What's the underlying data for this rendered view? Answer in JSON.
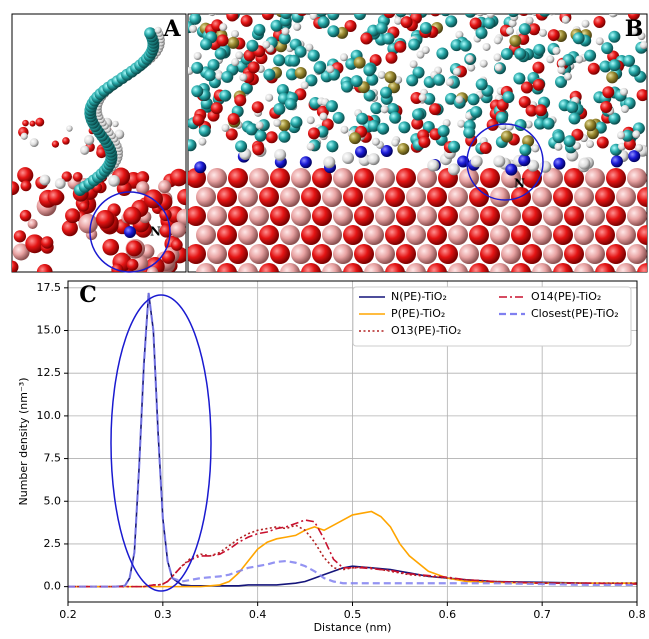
{
  "panels": {
    "a_label": "A",
    "b_label": "B",
    "n_label_a": "N",
    "n_label_b": "N"
  },
  "chart_data": {
    "type": "line",
    "panel_label": "C",
    "xlabel": "Distance (nm)",
    "ylabel": "Number density (nm⁻³)",
    "x": [
      0.2,
      0.22,
      0.24,
      0.25,
      0.26,
      0.265,
      0.27,
      0.275,
      0.28,
      0.285,
      0.29,
      0.295,
      0.3,
      0.305,
      0.31,
      0.32,
      0.33,
      0.34,
      0.35,
      0.36,
      0.37,
      0.38,
      0.39,
      0.4,
      0.41,
      0.42,
      0.43,
      0.44,
      0.45,
      0.46,
      0.47,
      0.48,
      0.49,
      0.5,
      0.51,
      0.52,
      0.53,
      0.54,
      0.55,
      0.56,
      0.58,
      0.6,
      0.62,
      0.65,
      0.7,
      0.75,
      0.8
    ],
    "series": [
      {
        "name": "N(PE)-TiO₂",
        "color": "#14147a",
        "linestyle": "solid",
        "values": [
          0,
          0,
          0,
          0,
          0.05,
          0.5,
          2,
          7,
          13,
          17.2,
          15,
          9,
          4,
          1.5,
          0.5,
          0.1,
          0.05,
          0.05,
          0.05,
          0.05,
          0.05,
          0.05,
          0.1,
          0.1,
          0.1,
          0.1,
          0.15,
          0.2,
          0.3,
          0.5,
          0.7,
          0.9,
          1.1,
          1.2,
          1.15,
          1.1,
          1.05,
          1.0,
          0.9,
          0.8,
          0.6,
          0.5,
          0.4,
          0.3,
          0.25,
          0.2,
          0.2
        ]
      },
      {
        "name": "P(PE)-TiO₂",
        "color": "#ffa500",
        "linestyle": "solid",
        "values": [
          0,
          0,
          0,
          0,
          0,
          0,
          0,
          0,
          0,
          0,
          0,
          0,
          0,
          0,
          0,
          0,
          0,
          0,
          0.05,
          0.1,
          0.3,
          0.8,
          1.5,
          2.2,
          2.6,
          2.8,
          2.9,
          3.0,
          3.3,
          3.5,
          3.3,
          3.6,
          3.9,
          4.2,
          4.3,
          4.4,
          4.1,
          3.5,
          2.5,
          1.8,
          0.9,
          0.5,
          0.3,
          0.25,
          0.2,
          0.2,
          0.2
        ]
      },
      {
        "name": "O13(PE)-TiO₂",
        "color": "#b22222",
        "linestyle": "dotted",
        "values": [
          0,
          0,
          0,
          0,
          0,
          0,
          0,
          0,
          0,
          0.05,
          0.1,
          0.1,
          0.15,
          0.3,
          0.6,
          1.2,
          1.7,
          1.9,
          1.8,
          2.0,
          2.4,
          2.8,
          3.1,
          3.3,
          3.4,
          3.5,
          3.4,
          3.6,
          3.3,
          2.6,
          1.7,
          1.1,
          1.0,
          1.1,
          1.15,
          1.1,
          1.0,
          0.9,
          0.8,
          0.7,
          0.6,
          0.5,
          0.4,
          0.3,
          0.2,
          0.2,
          0.2
        ]
      },
      {
        "name": "O14(PE)-TiO₂",
        "color": "#c8102e",
        "linestyle": "dashdot",
        "values": [
          0,
          0,
          0,
          0,
          0,
          0,
          0,
          0,
          0,
          0.05,
          0.1,
          0.1,
          0.15,
          0.3,
          0.6,
          1.2,
          1.6,
          1.8,
          1.8,
          1.9,
          2.2,
          2.6,
          2.9,
          3.1,
          3.2,
          3.4,
          3.5,
          3.7,
          3.9,
          3.8,
          2.8,
          1.6,
          1.1,
          1.1,
          1.1,
          1.05,
          1.0,
          0.95,
          0.85,
          0.75,
          0.65,
          0.55,
          0.4,
          0.3,
          0.2,
          0.2,
          0.15
        ]
      },
      {
        "name": "Closest(PE)-TiO₂",
        "color": "#8080f0",
        "linestyle": "dashed",
        "values": [
          0,
          0,
          0,
          0,
          0.05,
          0.5,
          2,
          7,
          13,
          17.2,
          15,
          9,
          4,
          1.5,
          0.5,
          0.3,
          0.4,
          0.5,
          0.55,
          0.6,
          0.7,
          0.9,
          1.1,
          1.2,
          1.3,
          1.45,
          1.5,
          1.4,
          1.2,
          0.9,
          0.5,
          0.3,
          0.2,
          0.2,
          0.2,
          0.2,
          0.2,
          0.2,
          0.2,
          0.2,
          0.2,
          0.2,
          0.2,
          0.2,
          0.15,
          0.1,
          0.1
        ]
      }
    ],
    "xlim": [
      0.2,
      0.8
    ],
    "xticks": [
      0.2,
      0.3,
      0.4,
      0.5,
      0.6,
      0.7,
      0.8
    ],
    "ylim": [
      -0.9,
      17.9
    ],
    "yticks": [
      {
        "value": 0,
        "label": "0.0"
      },
      2.5,
      {
        "value": 5,
        "label": "5.0"
      },
      7.5,
      {
        "value": 10,
        "label": "10.0"
      },
      12.5,
      {
        "value": 15,
        "label": "15.0"
      },
      17.5
    ],
    "grid": true,
    "legend": "upper right",
    "legend_columns": 2
  }
}
